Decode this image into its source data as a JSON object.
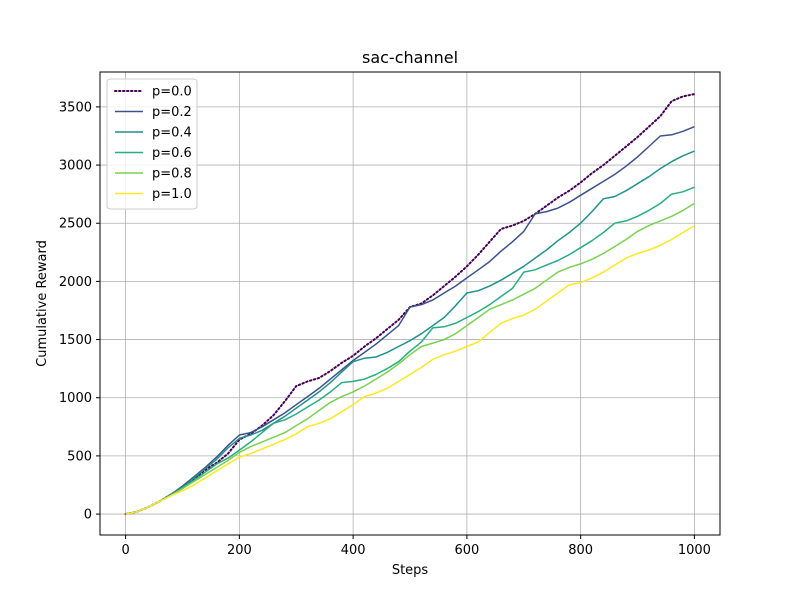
{
  "chart_data": {
    "type": "line",
    "title": "sac-channel",
    "xlabel": "Steps",
    "ylabel": "Cumulative Reward",
    "xlim": [
      -45,
      1045
    ],
    "ylim": [
      -180,
      3800
    ],
    "xticks": [
      0,
      200,
      400,
      600,
      800,
      1000
    ],
    "yticks": [
      0,
      500,
      1000,
      1500,
      2000,
      2500,
      3000,
      3500
    ],
    "grid": true,
    "legend_position": "upper-left",
    "x": [
      0,
      20,
      40,
      60,
      80,
      100,
      120,
      140,
      160,
      180,
      200,
      220,
      240,
      260,
      280,
      300,
      320,
      340,
      360,
      380,
      400,
      420,
      440,
      460,
      480,
      500,
      520,
      540,
      560,
      580,
      600,
      620,
      640,
      660,
      680,
      700,
      720,
      740,
      760,
      780,
      800,
      820,
      840,
      860,
      880,
      900,
      920,
      940,
      960,
      980,
      1000
    ],
    "series": [
      {
        "name": "p=0.0",
        "color": "#440154",
        "dash": "dotted",
        "values": [
          0,
          20,
          60,
          110,
          170,
          230,
          300,
          380,
          440,
          520,
          640,
          690,
          760,
          850,
          970,
          1100,
          1140,
          1170,
          1230,
          1300,
          1360,
          1440,
          1510,
          1590,
          1670,
          1780,
          1810,
          1880,
          1960,
          2040,
          2130,
          2230,
          2340,
          2450,
          2480,
          2520,
          2580,
          2650,
          2720,
          2780,
          2850,
          2930,
          3000,
          3080,
          3160,
          3240,
          3330,
          3420,
          3550,
          3590,
          3610
        ]
      },
      {
        "name": "p=0.2",
        "color": "#3b528b",
        "dash": "solid",
        "values": [
          0,
          20,
          60,
          110,
          170,
          240,
          320,
          400,
          490,
          590,
          680,
          700,
          750,
          810,
          870,
          940,
          1010,
          1080,
          1160,
          1240,
          1320,
          1390,
          1460,
          1540,
          1620,
          1780,
          1800,
          1840,
          1900,
          1960,
          2030,
          2100,
          2170,
          2260,
          2340,
          2430,
          2580,
          2600,
          2630,
          2680,
          2740,
          2800,
          2860,
          2920,
          2990,
          3070,
          3160,
          3250,
          3260,
          3290,
          3330
        ]
      },
      {
        "name": "p=0.4",
        "color": "#21918c",
        "dash": "solid",
        "values": [
          0,
          20,
          60,
          110,
          170,
          230,
          310,
          390,
          470,
          570,
          650,
          680,
          720,
          780,
          840,
          910,
          980,
          1050,
          1130,
          1220,
          1310,
          1340,
          1350,
          1390,
          1440,
          1490,
          1550,
          1620,
          1690,
          1790,
          1900,
          1920,
          1960,
          2010,
          2070,
          2130,
          2200,
          2270,
          2350,
          2420,
          2500,
          2600,
          2710,
          2730,
          2780,
          2840,
          2900,
          2970,
          3030,
          3080,
          3120
        ]
      },
      {
        "name": "p=0.6",
        "color": "#27ad81",
        "dash": "solid",
        "values": [
          0,
          20,
          60,
          110,
          160,
          220,
          290,
          360,
          430,
          480,
          550,
          620,
          700,
          780,
          810,
          860,
          920,
          980,
          1050,
          1130,
          1140,
          1160,
          1200,
          1250,
          1310,
          1400,
          1480,
          1600,
          1610,
          1640,
          1690,
          1740,
          1800,
          1870,
          1940,
          2080,
          2100,
          2140,
          2180,
          2230,
          2290,
          2350,
          2420,
          2500,
          2520,
          2560,
          2610,
          2670,
          2750,
          2770,
          2810
        ]
      },
      {
        "name": "p=0.8",
        "color": "#7ad151",
        "dash": "solid",
        "values": [
          0,
          20,
          60,
          110,
          160,
          220,
          280,
          340,
          400,
          460,
          530,
          580,
          620,
          660,
          700,
          760,
          820,
          890,
          960,
          1010,
          1050,
          1100,
          1160,
          1220,
          1290,
          1370,
          1440,
          1470,
          1500,
          1550,
          1620,
          1690,
          1760,
          1800,
          1840,
          1890,
          1940,
          2010,
          2080,
          2120,
          2150,
          2190,
          2240,
          2300,
          2360,
          2430,
          2480,
          2520,
          2560,
          2610,
          2670
        ]
      },
      {
        "name": "p=1.0",
        "color": "#fde725",
        "dash": "solid",
        "values": [
          0,
          20,
          60,
          110,
          160,
          200,
          250,
          310,
          370,
          430,
          490,
          520,
          560,
          600,
          640,
          690,
          750,
          780,
          820,
          880,
          940,
          1010,
          1040,
          1080,
          1140,
          1200,
          1260,
          1330,
          1370,
          1400,
          1440,
          1480,
          1560,
          1640,
          1680,
          1710,
          1760,
          1830,
          1900,
          1970,
          1990,
          2030,
          2080,
          2140,
          2200,
          2240,
          2270,
          2310,
          2360,
          2420,
          2480
        ]
      }
    ]
  }
}
